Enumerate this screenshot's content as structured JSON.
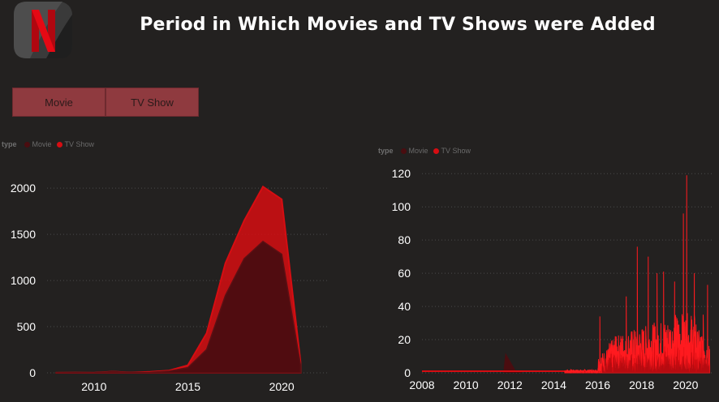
{
  "header": {
    "title": "Period in Which Movies and TV Shows were Added",
    "logo_letter": "N",
    "logo_color": "#e50914"
  },
  "slicer": {
    "buttons": [
      "Movie",
      "TV Show"
    ]
  },
  "colors": {
    "background": "#232120",
    "movie": "#4a0d10",
    "tv_show": "#d60d12",
    "gridline": "#4a4a4a"
  },
  "legend": {
    "title": "type",
    "items": [
      "Movie",
      "TV Show"
    ]
  },
  "chart_data": [
    {
      "type": "area",
      "stacked": true,
      "x": [
        2008,
        2009,
        2010,
        2011,
        2012,
        2013,
        2014,
        2015,
        2016,
        2017,
        2018,
        2019,
        2020,
        2021
      ],
      "series": [
        {
          "name": "Movie",
          "values": [
            1,
            2,
            1,
            13,
            3,
            6,
            19,
            56,
            253,
            839,
            1237,
            1424,
            1284,
            88
          ]
        },
        {
          "name": "TV Show",
          "values": [
            0,
            0,
            0,
            0,
            0,
            5,
            5,
            26,
            176,
            349,
            412,
            592,
            595,
            29
          ]
        }
      ],
      "xlim": [
        2007.5,
        2022.5
      ],
      "ylim": [
        0,
        2300
      ],
      "xticks": [
        2010,
        2015,
        2020
      ],
      "yticks": [
        0,
        500,
        1000,
        1500,
        2000
      ],
      "grid": true,
      "legend_position": "top-left"
    },
    {
      "type": "area",
      "stacked": false,
      "x_range": [
        2008,
        2021.2
      ],
      "series": [
        {
          "name": "Movie",
          "peaks": [
            [
              2011.8,
              12
            ],
            [
              2012.4,
              1
            ]
          ]
        },
        {
          "name": "TV Show",
          "spikes": [
            [
              2016.1,
              34
            ],
            [
              2016.8,
              22
            ],
            [
              2017.3,
              46
            ],
            [
              2017.8,
              76
            ],
            [
              2018.3,
              70
            ],
            [
              2018.7,
              60
            ],
            [
              2019.0,
              61
            ],
            [
              2019.5,
              55
            ],
            [
              2019.9,
              96
            ],
            [
              2020.05,
              119
            ],
            [
              2020.4,
              60
            ],
            [
              2020.8,
              35
            ],
            [
              2021.0,
              53
            ]
          ]
        }
      ],
      "xlim": [
        2008,
        2021.3
      ],
      "ylim": [
        0,
        125
      ],
      "xticks": [
        2008,
        2010,
        2012,
        2014,
        2016,
        2018,
        2020
      ],
      "yticks": [
        0,
        20,
        40,
        60,
        80,
        100,
        120
      ],
      "grid": true,
      "legend_position": "top-left"
    }
  ]
}
